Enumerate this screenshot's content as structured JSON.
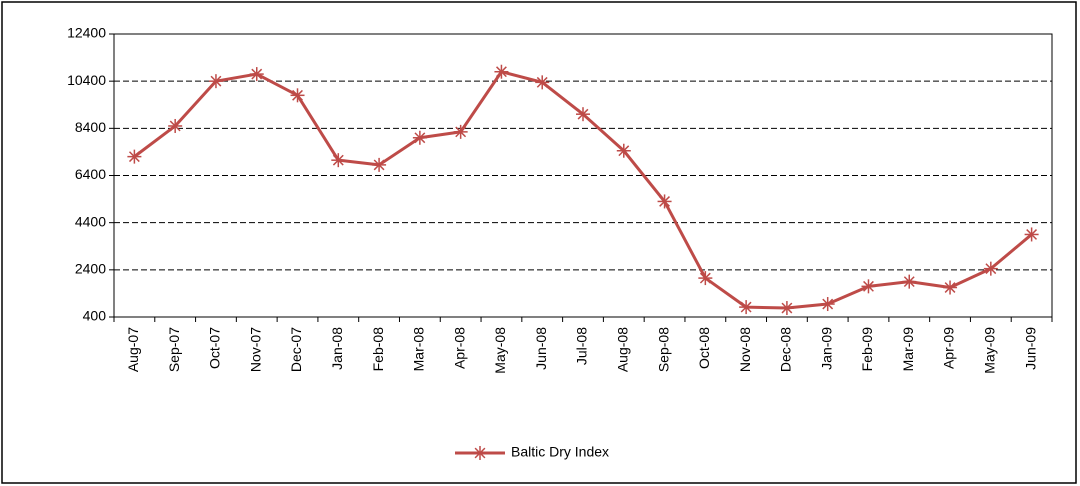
{
  "chart_data": {
    "type": "line",
    "categories": [
      "Aug-07",
      "Sep-07",
      "Oct-07",
      "Nov-07",
      "Dec-07",
      "Jan-08",
      "Feb-08",
      "Mar-08",
      "Apr-08",
      "May-08",
      "Jun-08",
      "Jul-08",
      "Aug-08",
      "Sep-08",
      "Oct-08",
      "Nov-08",
      "Dec-08",
      "Jan-09",
      "Feb-09",
      "Mar-09",
      "Apr-09",
      "May-09",
      "Jun-09"
    ],
    "series": [
      {
        "name": "Baltic Dry Index",
        "color": "#be4b48",
        "values": [
          7200,
          8500,
          10400,
          10700,
          9800,
          7050,
          6850,
          8000,
          8250,
          10800,
          10350,
          9000,
          7450,
          5300,
          2050,
          820,
          780,
          950,
          1700,
          1900,
          1650,
          2450,
          3900
        ]
      }
    ],
    "ylim": [
      400,
      12400
    ],
    "yticks": [
      400,
      2400,
      4400,
      6400,
      8400,
      10400,
      12400
    ],
    "grid": true,
    "legend": "bottom"
  }
}
